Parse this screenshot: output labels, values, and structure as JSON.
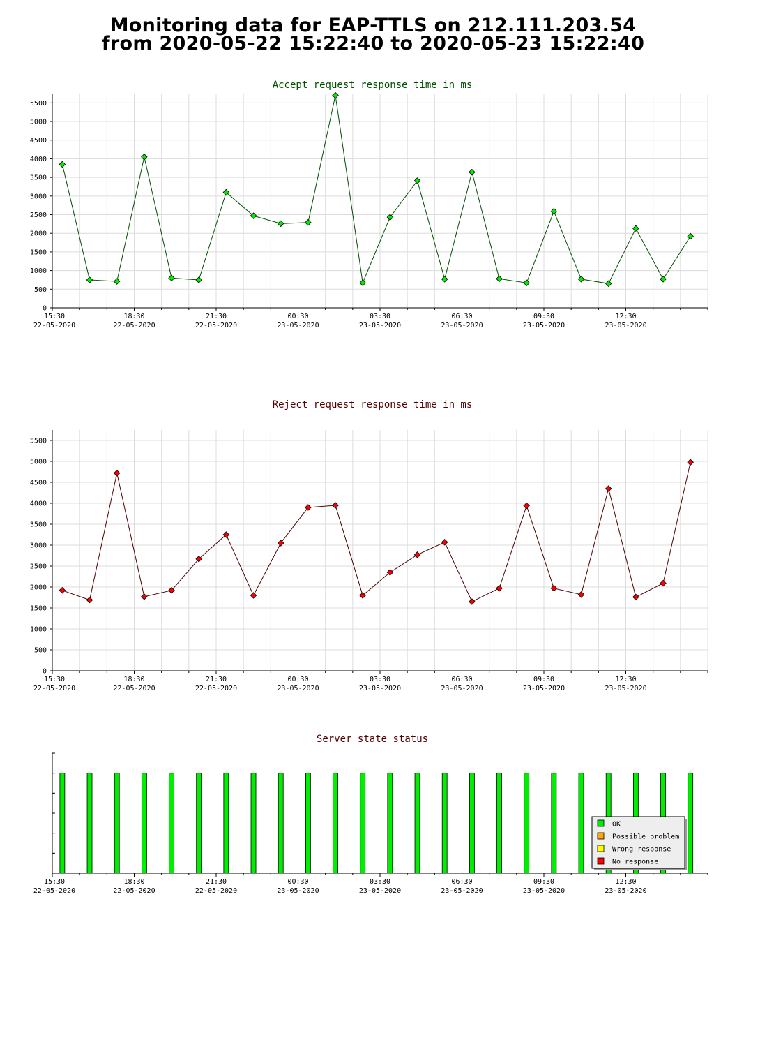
{
  "page": {
    "title_line1": "Monitoring data for EAP-TTLS on 212.111.203.54",
    "title_line2": "from 2020-05-22 15:22:40 to 2020-05-23 15:22:40"
  },
  "colors": {
    "accept_title": "#005000",
    "reject_title": "#500000",
    "status_title": "#500000",
    "accept_line": "#004d00",
    "reject_line": "#4d0000",
    "ok": "#00ee00",
    "possible_problem": "#ffa500",
    "wrong_response": "#ffff00",
    "no_response": "#ff0000",
    "grid": "#dcdcdc"
  },
  "time_ticks": [
    {
      "time": "15:30",
      "date": "22-05-2020"
    },
    {
      "time": "18:30",
      "date": "22-05-2020"
    },
    {
      "time": "21:30",
      "date": "22-05-2020"
    },
    {
      "time": "00:30",
      "date": "23-05-2020"
    },
    {
      "time": "03:30",
      "date": "23-05-2020"
    },
    {
      "time": "06:30",
      "date": "23-05-2020"
    },
    {
      "time": "09:30",
      "date": "23-05-2020"
    },
    {
      "time": "12:30",
      "date": "23-05-2020"
    }
  ],
  "chart_data": [
    {
      "type": "line",
      "title": "Accept request response time in ms",
      "x_range": [
        "2020-05-22 15:30",
        "2020-05-23 15:30"
      ],
      "ylim": [
        0,
        5750
      ],
      "y_ticks": [
        0,
        500,
        1000,
        1500,
        2000,
        2500,
        3000,
        3500,
        4000,
        4500,
        5000,
        5500
      ],
      "grid": true,
      "x": [
        "2020-05-22 15:52",
        "2020-05-22 16:52",
        "2020-05-22 17:52",
        "2020-05-22 18:52",
        "2020-05-22 19:52",
        "2020-05-22 20:52",
        "2020-05-22 21:52",
        "2020-05-22 22:52",
        "2020-05-22 23:52",
        "2020-05-23 00:52",
        "2020-05-23 01:52",
        "2020-05-23 02:52",
        "2020-05-23 03:52",
        "2020-05-23 04:52",
        "2020-05-23 05:52",
        "2020-05-23 06:52",
        "2020-05-23 07:52",
        "2020-05-23 08:52",
        "2020-05-23 09:52",
        "2020-05-23 10:52",
        "2020-05-23 11:52",
        "2020-05-23 12:52",
        "2020-05-23 13:52",
        "2020-05-23 14:52"
      ],
      "values": [
        3850,
        750,
        710,
        4050,
        800,
        750,
        3100,
        2470,
        2260,
        2290,
        5700,
        670,
        2430,
        3410,
        770,
        3640,
        780,
        670,
        2590,
        770,
        650,
        2130,
        770,
        1920
      ]
    },
    {
      "type": "line",
      "title": "Reject request response time in ms",
      "x_range": [
        "2020-05-22 15:30",
        "2020-05-23 15:30"
      ],
      "ylim": [
        0,
        5750
      ],
      "y_ticks": [
        0,
        500,
        1000,
        1500,
        2000,
        2500,
        3000,
        3500,
        4000,
        4500,
        5000,
        5500
      ],
      "grid": true,
      "x": [
        "2020-05-22 15:52",
        "2020-05-22 16:52",
        "2020-05-22 17:52",
        "2020-05-22 18:52",
        "2020-05-22 19:52",
        "2020-05-22 20:52",
        "2020-05-22 21:52",
        "2020-05-22 22:52",
        "2020-05-22 23:52",
        "2020-05-23 00:52",
        "2020-05-23 01:52",
        "2020-05-23 02:52",
        "2020-05-23 03:52",
        "2020-05-23 04:52",
        "2020-05-23 05:52",
        "2020-05-23 06:52",
        "2020-05-23 07:52",
        "2020-05-23 08:52",
        "2020-05-23 09:52",
        "2020-05-23 10:52",
        "2020-05-23 11:52",
        "2020-05-23 12:52",
        "2020-05-23 13:52",
        "2020-05-23 14:52"
      ],
      "values": [
        1920,
        1690,
        4720,
        1770,
        1920,
        2670,
        3250,
        1800,
        3050,
        3900,
        3950,
        1800,
        2350,
        2770,
        3070,
        1650,
        1970,
        3940,
        1970,
        1820,
        4350,
        1760,
        2090,
        4980
      ]
    },
    {
      "type": "bar",
      "title": "Server state status",
      "x_range": [
        "2020-05-22 15:30",
        "2020-05-23 15:30"
      ],
      "x": [
        "2020-05-22 15:52",
        "2020-05-22 16:52",
        "2020-05-22 17:52",
        "2020-05-22 18:52",
        "2020-05-22 19:52",
        "2020-05-22 20:52",
        "2020-05-22 21:52",
        "2020-05-22 22:52",
        "2020-05-22 23:52",
        "2020-05-23 00:52",
        "2020-05-23 01:52",
        "2020-05-23 02:52",
        "2020-05-23 03:52",
        "2020-05-23 04:52",
        "2020-05-23 05:52",
        "2020-05-23 06:52",
        "2020-05-23 07:52",
        "2020-05-23 08:52",
        "2020-05-23 09:52",
        "2020-05-23 10:52",
        "2020-05-23 11:52",
        "2020-05-23 12:52",
        "2020-05-23 13:52",
        "2020-05-23 14:52"
      ],
      "status": [
        "OK",
        "OK",
        "OK",
        "OK",
        "OK",
        "OK",
        "OK",
        "OK",
        "OK",
        "OK",
        "OK",
        "OK",
        "OK",
        "OK",
        "OK",
        "OK",
        "OK",
        "OK",
        "OK",
        "OK",
        "OK",
        "OK",
        "OK",
        "OK"
      ],
      "legend": [
        {
          "label": "OK",
          "color": "#00ee00"
        },
        {
          "label": "Possible problem",
          "color": "#ffa500"
        },
        {
          "label": "Wrong response",
          "color": "#ffff00"
        },
        {
          "label": "No response",
          "color": "#ff0000"
        }
      ],
      "legend_position": "bottom-right"
    }
  ]
}
